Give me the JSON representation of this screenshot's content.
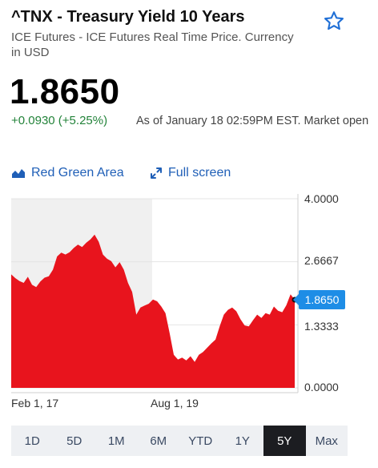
{
  "header": {
    "title": "^TNX - Treasury Yield 10 Years",
    "subtitle": "ICE Futures - ICE Futures Real Time Price. Currency in USD"
  },
  "quote": {
    "price": "1.8650",
    "change": "+0.0930 (+5.25%)",
    "as_of": "As of January 18 02:59PM EST. Market open"
  },
  "toolbar": {
    "chart_type_label": "Red Green Area",
    "full_screen_label": "Full screen"
  },
  "colors": {
    "area_fill": "#e8141d",
    "highlight_bg": "#f0f0f0",
    "accent_blue": "#1f5fb7",
    "badge_blue": "#1e8de6",
    "positive_green": "#23833a"
  },
  "icons": [
    "star-icon",
    "area-chart-icon",
    "expand-icon"
  ],
  "chart": {
    "y_ticks": [
      "4.0000",
      "2.6667",
      "1.3333",
      "0.0000"
    ],
    "current_badge": "1.8650",
    "x_ticks": [
      "Feb 1, 17",
      "Aug 1, 19"
    ]
  },
  "chart_data": {
    "type": "area",
    "ylim": [
      0,
      4
    ],
    "y_ticks": [
      0,
      1.3333,
      2.6667,
      4.0
    ],
    "x_ticks": [
      "Feb 1, 17",
      "Aug 1, 19"
    ],
    "current_value": 1.865,
    "points": [
      [
        0.0,
        2.4
      ],
      [
        0.6,
        2.32
      ],
      [
        1.2,
        2.26
      ],
      [
        1.8,
        2.22
      ],
      [
        2.4,
        2.35
      ],
      [
        3.0,
        2.18
      ],
      [
        3.6,
        2.13
      ],
      [
        4.2,
        2.25
      ],
      [
        4.8,
        2.33
      ],
      [
        5.4,
        2.36
      ],
      [
        6.0,
        2.5
      ],
      [
        6.6,
        2.78
      ],
      [
        7.2,
        2.86
      ],
      [
        7.8,
        2.82
      ],
      [
        8.4,
        2.87
      ],
      [
        9.0,
        2.96
      ],
      [
        9.6,
        3.03
      ],
      [
        10.2,
        2.98
      ],
      [
        10.8,
        3.07
      ],
      [
        11.4,
        3.14
      ],
      [
        12.0,
        3.24
      ],
      [
        12.6,
        3.09
      ],
      [
        13.2,
        2.82
      ],
      [
        13.8,
        2.73
      ],
      [
        14.4,
        2.68
      ],
      [
        15.0,
        2.55
      ],
      [
        15.6,
        2.66
      ],
      [
        16.2,
        2.5
      ],
      [
        16.8,
        2.22
      ],
      [
        17.4,
        2.03
      ],
      [
        18.0,
        1.55
      ],
      [
        18.6,
        1.7
      ],
      [
        19.2,
        1.74
      ],
      [
        19.8,
        1.78
      ],
      [
        20.4,
        1.87
      ],
      [
        21.0,
        1.83
      ],
      [
        21.6,
        1.72
      ],
      [
        22.2,
        1.58
      ],
      [
        22.8,
        1.16
      ],
      [
        23.4,
        0.7
      ],
      [
        24.0,
        0.6
      ],
      [
        24.6,
        0.64
      ],
      [
        25.2,
        0.58
      ],
      [
        25.8,
        0.67
      ],
      [
        26.4,
        0.55
      ],
      [
        27.0,
        0.7
      ],
      [
        27.6,
        0.76
      ],
      [
        28.2,
        0.85
      ],
      [
        28.8,
        0.94
      ],
      [
        29.4,
        1.02
      ],
      [
        30.0,
        1.3
      ],
      [
        30.6,
        1.55
      ],
      [
        31.2,
        1.65
      ],
      [
        31.8,
        1.7
      ],
      [
        32.4,
        1.62
      ],
      [
        33.0,
        1.45
      ],
      [
        33.6,
        1.32
      ],
      [
        34.2,
        1.3
      ],
      [
        34.8,
        1.43
      ],
      [
        35.4,
        1.55
      ],
      [
        36.0,
        1.48
      ],
      [
        36.6,
        1.58
      ],
      [
        37.2,
        1.55
      ],
      [
        37.8,
        1.72
      ],
      [
        38.4,
        1.63
      ],
      [
        39.0,
        1.6
      ],
      [
        39.6,
        1.75
      ],
      [
        40.2,
        1.98
      ],
      [
        40.8,
        1.865
      ]
    ]
  },
  "ranges": {
    "items": [
      "1D",
      "5D",
      "1M",
      "6M",
      "YTD",
      "1Y",
      "5Y",
      "Max"
    ],
    "selected": "5Y"
  }
}
